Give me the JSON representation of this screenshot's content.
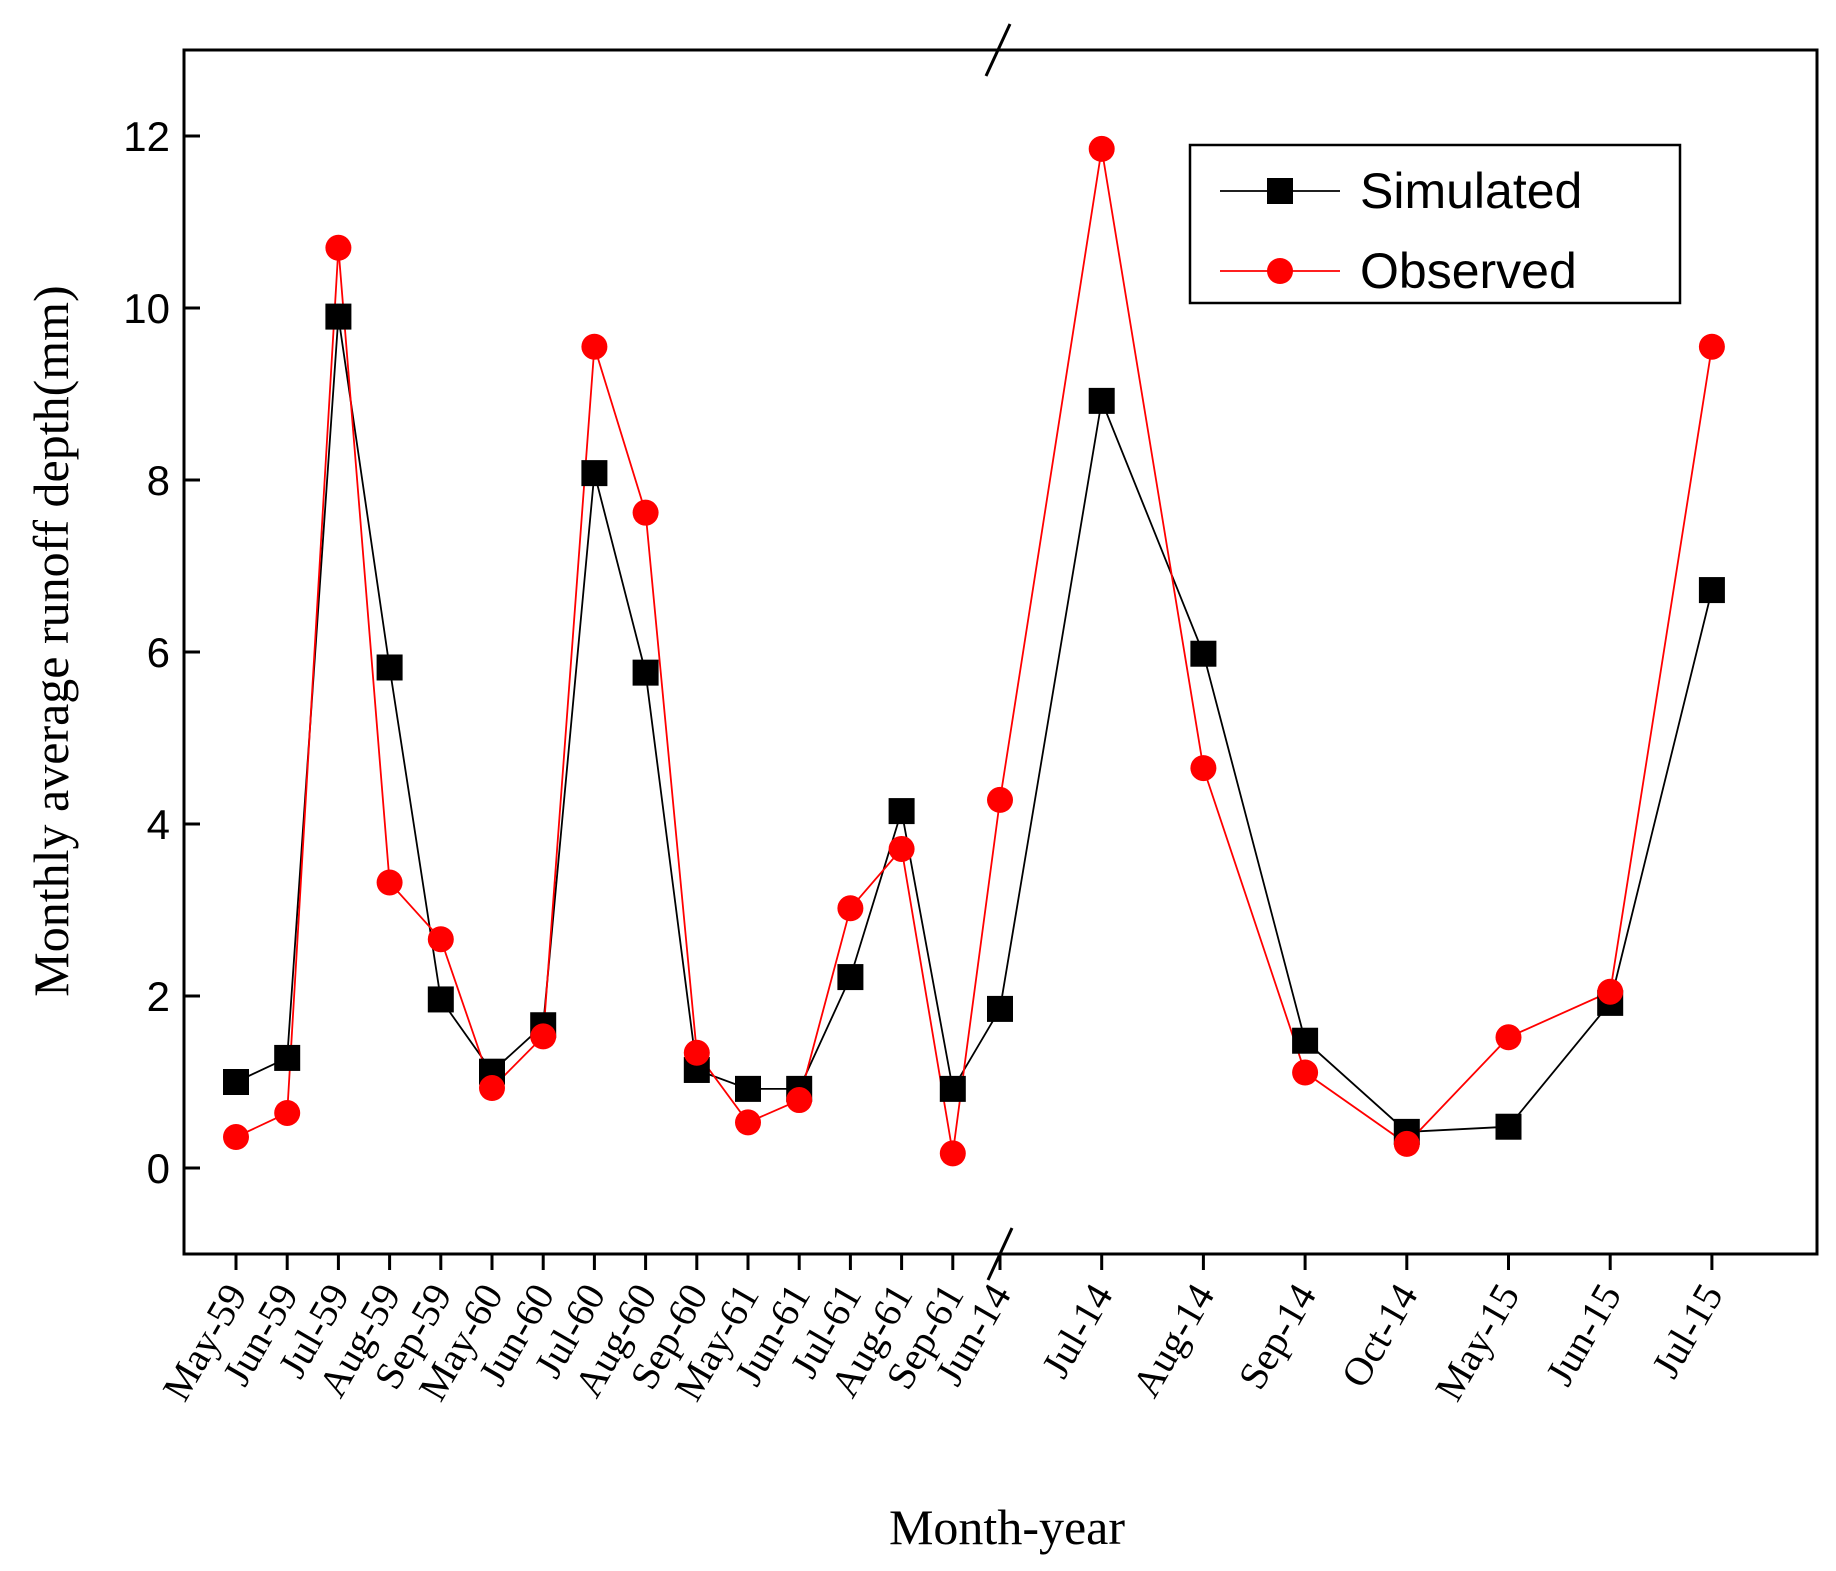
{
  "chart_data": {
    "type": "line",
    "title": "",
    "xlabel": "Month-year",
    "ylabel": "Monthly average runoff depth(mm)",
    "ylim": [
      -1,
      13
    ],
    "yticks": [
      0,
      2,
      4,
      6,
      8,
      10,
      12
    ],
    "grid": false,
    "legend_position": "top-right",
    "axis_break": "between Sep-61 and Jun-14",
    "categories": [
      "May-59",
      "Jun-59",
      "Jul-59",
      "Aug-59",
      "Sep-59",
      "May-60",
      "Jun-60",
      "Jul-60",
      "Aug-60",
      "Sep-60",
      "May-61",
      "Jun-61",
      "Jul-61",
      "Aug-61",
      "Sep-61",
      "Jun-14",
      "Jul-14",
      "Aug-14",
      "Sep-14",
      "Oct-14",
      "May-15",
      "Jun-15",
      "Jul-15"
    ],
    "series": [
      {
        "name": "Simulated",
        "color": "#000000",
        "marker": "square",
        "values": [
          1.0,
          1.28,
          9.9,
          5.82,
          1.96,
          1.12,
          1.66,
          8.08,
          5.76,
          1.14,
          0.92,
          0.92,
          2.22,
          4.15,
          0.92,
          1.85,
          8.92,
          5.98,
          1.48,
          0.42,
          0.48,
          1.92,
          6.72
        ]
      },
      {
        "name": "Observed",
        "color": "#ff0000",
        "marker": "circle",
        "values": [
          0.36,
          0.64,
          10.7,
          3.32,
          2.66,
          0.93,
          1.53,
          9.55,
          7.62,
          1.34,
          0.53,
          0.79,
          3.02,
          3.71,
          0.17,
          4.28,
          11.85,
          4.65,
          1.11,
          0.28,
          1.52,
          2.05,
          9.55
        ]
      }
    ]
  }
}
